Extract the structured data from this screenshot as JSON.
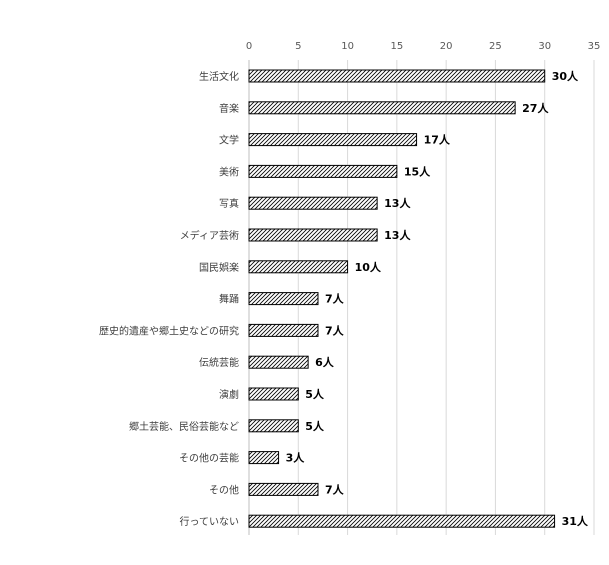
{
  "chart_data": {
    "type": "bar",
    "orientation": "horizontal",
    "title": "",
    "xlabel": "",
    "ylabel": "",
    "xlim": [
      0,
      35
    ],
    "ticks": [
      "0",
      "5",
      "10",
      "15",
      "20",
      "25",
      "30",
      "35"
    ],
    "grid": true,
    "fill_pattern": "diagonal-hatch",
    "colors": {
      "bar_stroke": "#000000",
      "hatch": "#000000",
      "grid": "#d9d9d9"
    },
    "categories": [
      "生活文化",
      "音楽",
      "文学",
      "美術",
      "写真",
      "メディア芸術",
      "国民娯楽",
      "舞踊",
      "歴史的遺産や郷土史などの研究",
      "伝統芸能",
      "演劇",
      "郷土芸能、民俗芸能など",
      "その他の芸能",
      "その他",
      "行っていない"
    ],
    "values": [
      30,
      27,
      17,
      15,
      13,
      13,
      10,
      7,
      7,
      6,
      5,
      5,
      3,
      7,
      31
    ],
    "value_labels": [
      "30人",
      "27人",
      "17人",
      "15人",
      "13人",
      "13人",
      "10人",
      "7人",
      "7人",
      "6人",
      "5人",
      "5人",
      "3人",
      "7人",
      "31人"
    ]
  }
}
